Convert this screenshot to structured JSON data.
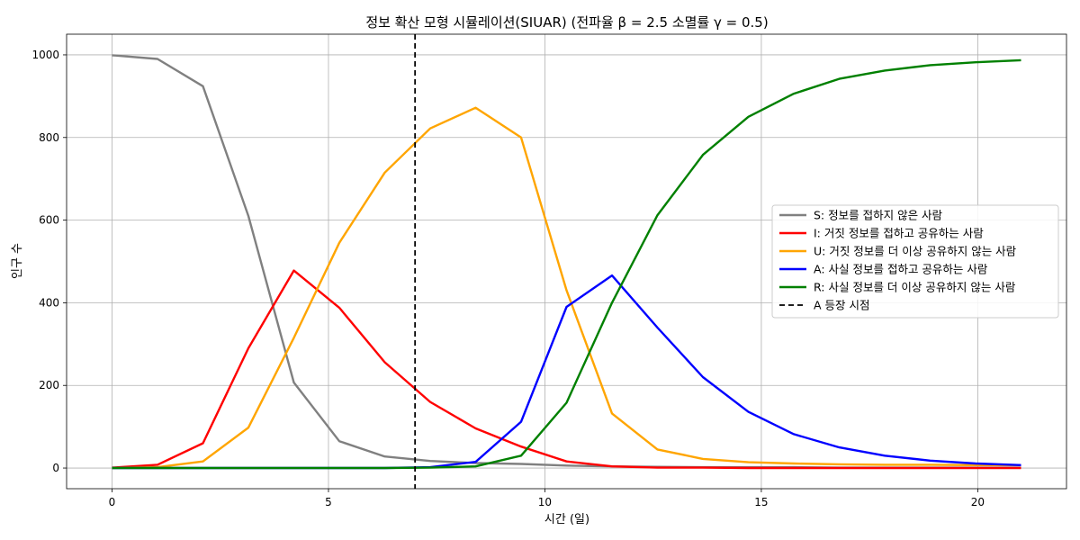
{
  "chart_data": {
    "type": "line",
    "title": "정보 확산 모형 시뮬레이션(SIUAR) (전파율 β = 2.5 소멸률 γ = 0.5)",
    "xlabel": "시간 (일)",
    "ylabel": "인구 수",
    "xlim": [
      -1.05,
      22.05
    ],
    "ylim": [
      -50,
      1050
    ],
    "xticks": [
      0,
      5,
      10,
      15,
      20
    ],
    "yticks": [
      0,
      200,
      400,
      600,
      800,
      1000
    ],
    "grid": true,
    "legend_position": "center-right",
    "x": [
      0,
      1.05,
      2.1,
      3.15,
      4.2,
      5.25,
      6.3,
      7.35,
      8.4,
      9.45,
      10.5,
      11.55,
      12.6,
      13.65,
      14.7,
      15.75,
      16.8,
      17.85,
      18.9,
      19.95,
      21
    ],
    "series": [
      {
        "name": "S: 정보를 접하지 않은 사람",
        "color": "#808080",
        "values": [
          999,
          990,
          924,
          610,
          207,
          65,
          28,
          17,
          12,
          10,
          6,
          4,
          3,
          2,
          2,
          2,
          1,
          1,
          1,
          1,
          1
        ]
      },
      {
        "name": "I: 거짓 정보를 접하고 공유하는 사람",
        "color": "#ff0000",
        "values": [
          1,
          8,
          60,
          290,
          478,
          388,
          256,
          160,
          96,
          52,
          16,
          4,
          1,
          1,
          0,
          0,
          0,
          0,
          0,
          0,
          0
        ]
      },
      {
        "name": "U: 거짓 정보를 더 이상 공유하지 않는 사람",
        "color": "#ffa500",
        "values": [
          0,
          2,
          16,
          98,
          315,
          545,
          715,
          822,
          872,
          800,
          430,
          132,
          45,
          22,
          14,
          11,
          9,
          8,
          8,
          7,
          7
        ]
      },
      {
        "name": "A: 사실 정보를 접하고 공유하는 사람",
        "color": "#0000ff",
        "values": [
          0,
          0,
          0,
          0,
          0,
          0,
          0,
          2,
          15,
          112,
          390,
          466,
          340,
          220,
          136,
          82,
          50,
          30,
          18,
          11,
          7
        ]
      },
      {
        "name": "R: 사실 정보를 더 이상 공유하지 않는 사람",
        "color": "#008000",
        "values": [
          0,
          0,
          0,
          0,
          0,
          0,
          0,
          1,
          4,
          30,
          158,
          400,
          612,
          758,
          850,
          906,
          942,
          962,
          975,
          982,
          987
        ]
      }
    ],
    "annotations": [
      {
        "type": "vline",
        "x": 7,
        "label": "A 등장 시점",
        "color": "#000000",
        "style": "dashed"
      }
    ]
  }
}
